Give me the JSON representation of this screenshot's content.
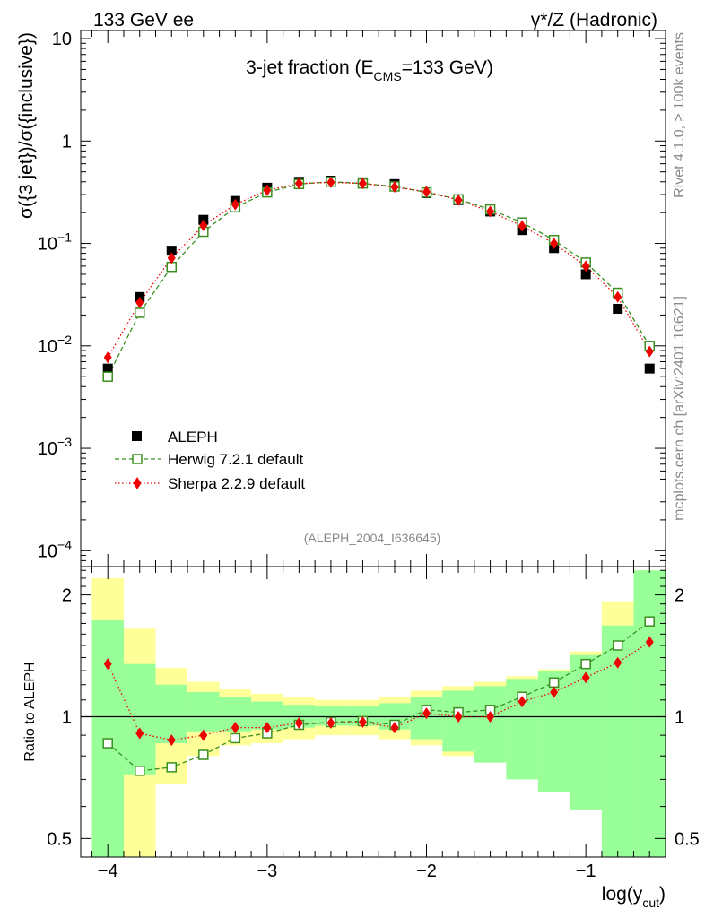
{
  "header": {
    "left": "133 GeV ee",
    "right": "γ*/Z (Hadronic)"
  },
  "side_labels": {
    "rivet": "Rivet 4.1.0, ≥ 100k events",
    "mcplots": "mcplots.cern.ch [arXiv:2401.10621]"
  },
  "chart_data": [
    {
      "type": "line",
      "panel": "main",
      "title": "3-jet fraction (E_CMS=133 GeV)",
      "title_parts": {
        "pre": "3-jet fraction (E",
        "sub": "CMS",
        "post": "=133 GeV)"
      },
      "ylabel": "σ({3 jet})/σ({inclusive})",
      "yscale": "log",
      "ylim": [
        7e-05,
        12
      ],
      "xlim": [
        -4.17,
        -0.5
      ],
      "watermark": "(ALEPH_2004_I636645)",
      "y_tick_labels": [
        {
          "value": 10,
          "label": "10"
        },
        {
          "value": 1,
          "label": "1"
        },
        {
          "value": 0.1,
          "base": "10",
          "exp": "−1"
        },
        {
          "value": 0.01,
          "base": "10",
          "exp": "−2"
        },
        {
          "value": 0.001,
          "base": "10",
          "exp": "−3"
        },
        {
          "value": 0.0001,
          "base": "10",
          "exp": "−4"
        }
      ],
      "x": [
        -4.0,
        -3.8,
        -3.6,
        -3.4,
        -3.2,
        -3.0,
        -2.8,
        -2.6,
        -2.4,
        -2.2,
        -2.0,
        -1.8,
        -1.6,
        -1.4,
        -1.2,
        -1.0,
        -0.8,
        -0.6
      ],
      "series": [
        {
          "name": "ALEPH",
          "marker": "square",
          "color": "#000000",
          "values": [
            0.006,
            0.03,
            0.085,
            0.17,
            0.26,
            0.35,
            0.4,
            0.41,
            0.395,
            0.38,
            0.31,
            0.265,
            0.205,
            0.135,
            0.09,
            0.05,
            0.023,
            0.006
          ]
        },
        {
          "name": "Herwig 7.2.1 default",
          "marker": "open-square",
          "color": "#3a8f1e",
          "values": [
            0.005,
            0.021,
            0.059,
            0.13,
            0.225,
            0.315,
            0.38,
            0.4,
            0.385,
            0.36,
            0.315,
            0.27,
            0.215,
            0.16,
            0.108,
            0.065,
            0.033,
            0.01
          ]
        },
        {
          "name": "Sherpa 2.2.9 default",
          "marker": "diamond",
          "color": "#ee0000",
          "values": [
            0.0077,
            0.0265,
            0.072,
            0.15,
            0.24,
            0.33,
            0.385,
            0.395,
            0.385,
            0.355,
            0.32,
            0.265,
            0.205,
            0.148,
            0.1,
            0.06,
            0.03,
            0.0088
          ]
        }
      ],
      "legend": {
        "placement": "lower-left"
      }
    },
    {
      "type": "line",
      "panel": "ratio",
      "ylabel": "Ratio to ALEPH",
      "yscale": "log",
      "ylim": [
        0.45,
        2.35
      ],
      "reference_line": 1,
      "y_tick_labels": [
        {
          "value": 2,
          "label": "2"
        },
        {
          "value": 1,
          "label": "1"
        },
        {
          "value": 0.5,
          "label": "0.5"
        }
      ],
      "x_tick_labels": [
        {
          "value": -4,
          "label": "−4"
        },
        {
          "value": -3,
          "label": "−3"
        },
        {
          "value": -2,
          "label": "−2"
        },
        {
          "value": -1,
          "label": "−1"
        }
      ],
      "xlabel_parts": {
        "pre": "log(y",
        "sub": "cut",
        "post": ")"
      },
      "x": [
        -4.0,
        -3.8,
        -3.6,
        -3.4,
        -3.2,
        -3.0,
        -2.8,
        -2.6,
        -2.4,
        -2.2,
        -2.0,
        -1.8,
        -1.6,
        -1.4,
        -1.2,
        -1.0,
        -0.8,
        -0.6
      ],
      "bands": {
        "yellow_outer": {
          "color": "#ffff99",
          "lower": [
            0.35,
            0.35,
            0.68,
            0.8,
            0.85,
            0.86,
            0.88,
            0.9,
            0.9,
            0.88,
            0.85,
            0.8,
            0.78,
            0.74,
            0.7,
            0.64,
            0.52,
            0.35
          ],
          "upper": [
            2.2,
            1.65,
            1.32,
            1.22,
            1.17,
            1.14,
            1.12,
            1.1,
            1.1,
            1.12,
            1.16,
            1.19,
            1.22,
            1.26,
            1.31,
            1.45,
            1.93,
            2.3
          ]
        },
        "green_inner": {
          "color": "#99ff99",
          "lower": [
            0.35,
            0.72,
            0.86,
            0.92,
            0.92,
            0.93,
            0.94,
            0.95,
            0.95,
            0.93,
            0.88,
            0.82,
            0.77,
            0.7,
            0.65,
            0.59,
            0.35,
            0.35
          ],
          "upper": [
            1.73,
            1.35,
            1.2,
            1.15,
            1.12,
            1.09,
            1.07,
            1.06,
            1.06,
            1.08,
            1.12,
            1.16,
            1.19,
            1.24,
            1.3,
            1.42,
            1.68,
            2.3
          ]
        }
      },
      "series": [
        {
          "name": "Herwig 7.2.1 default",
          "marker": "open-square",
          "color": "#3a8f1e",
          "values": [
            0.86,
            0.735,
            0.75,
            0.805,
            0.885,
            0.91,
            0.955,
            0.97,
            0.975,
            0.955,
            1.04,
            1.025,
            1.04,
            1.12,
            1.215,
            1.35,
            1.5,
            1.72
          ]
        },
        {
          "name": "Sherpa 2.2.9 default",
          "marker": "diamond",
          "color": "#ee0000",
          "values": [
            1.35,
            0.91,
            0.875,
            0.9,
            0.94,
            0.94,
            0.965,
            0.965,
            0.97,
            0.94,
            1.02,
            1.0,
            1.0,
            1.09,
            1.15,
            1.25,
            1.36,
            1.53
          ]
        }
      ]
    }
  ]
}
